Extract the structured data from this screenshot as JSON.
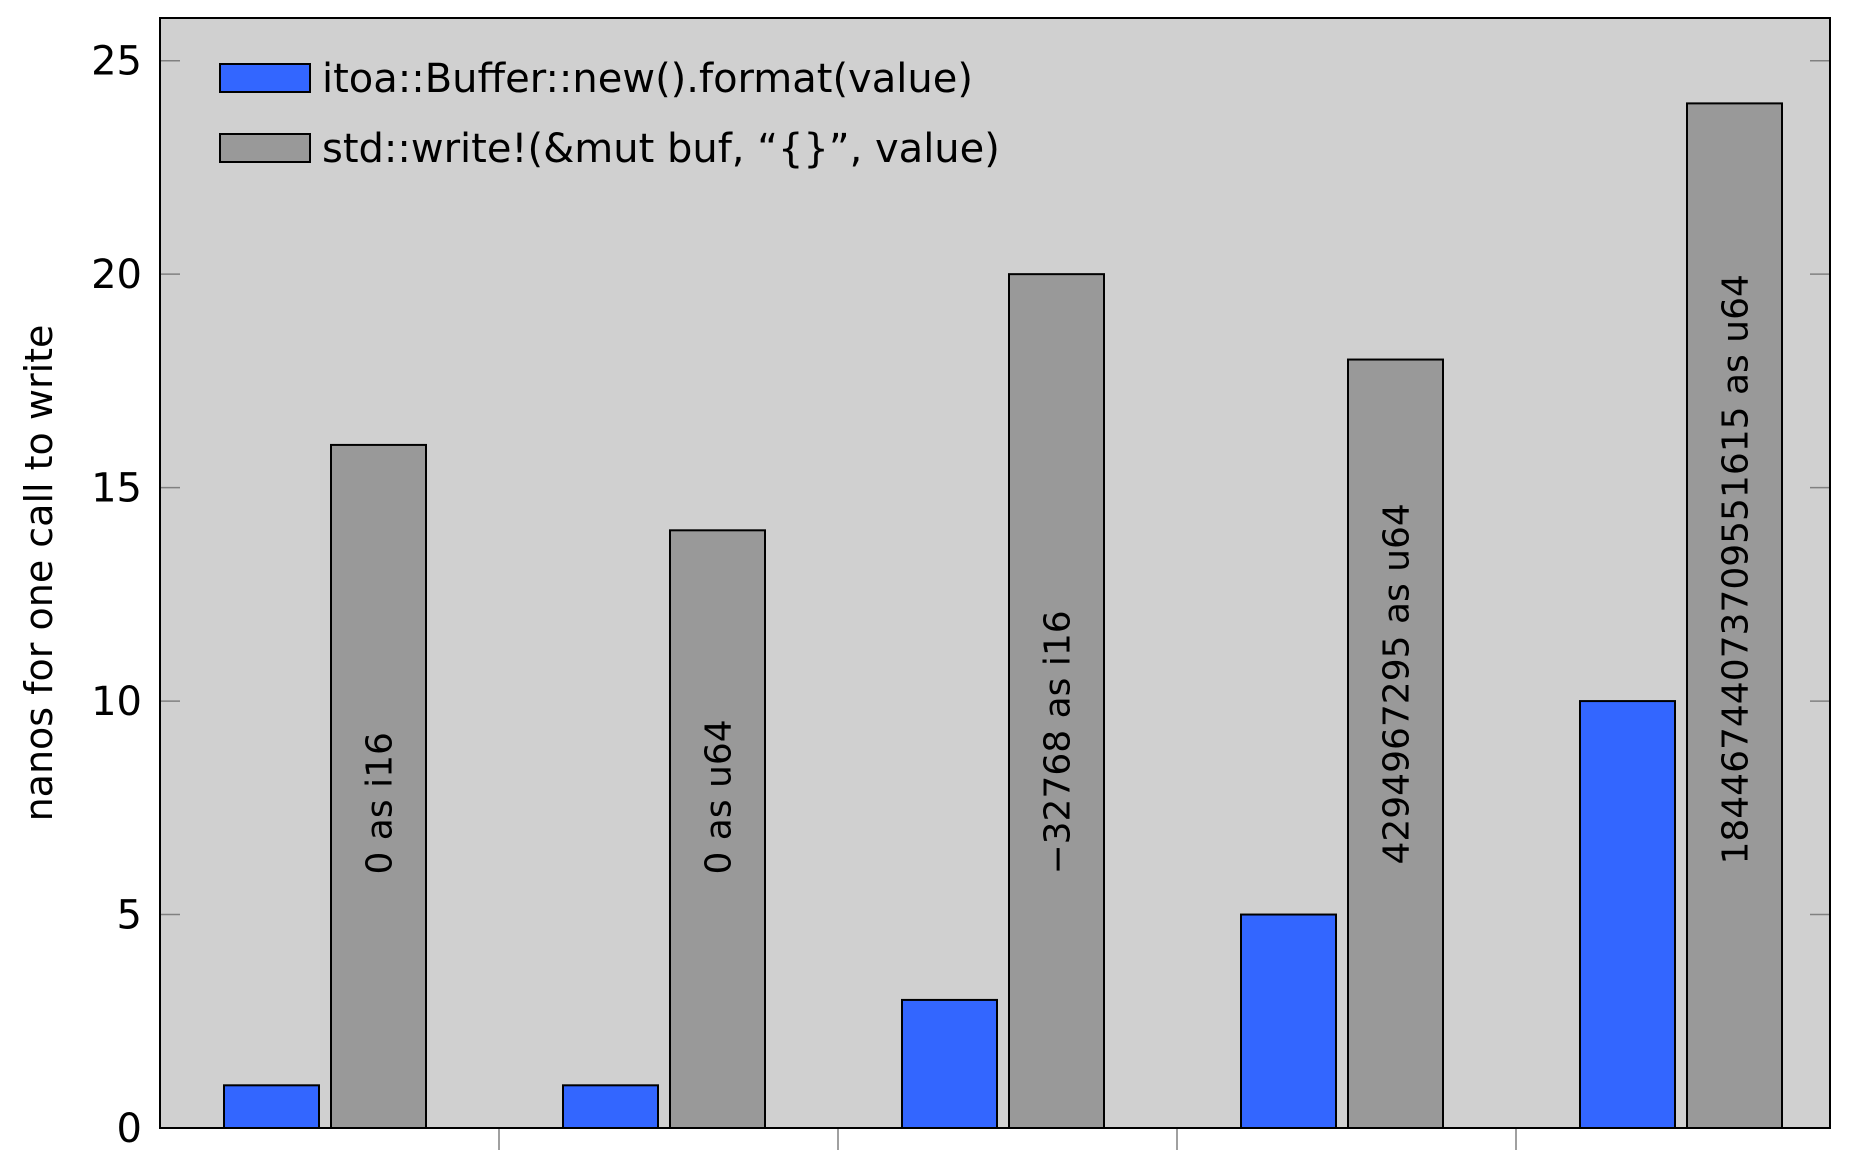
{
  "chart_data": {
    "type": "bar",
    "title": "",
    "xlabel": "",
    "ylabel": "nanos for one call to write",
    "ylim": [
      0,
      26
    ],
    "yticks": [
      0,
      5,
      10,
      15,
      20,
      25
    ],
    "grid": false,
    "legend_position": "top-left",
    "categories": [
      "0 as i16",
      "0 as u64",
      "−32768 as i16",
      "4294967295 as u64",
      "18446744073709551615 as u64"
    ],
    "series": [
      {
        "name": "itoa::Buffer::new().format(value)",
        "color": "#3366ff",
        "values": [
          1,
          1,
          3,
          5,
          10
        ]
      },
      {
        "name": "std::write!(&mut buf, “{}”, value)",
        "color": "#999999",
        "values": [
          16,
          14,
          20,
          18,
          24
        ]
      }
    ],
    "background_color": "#d0d0d0"
  }
}
